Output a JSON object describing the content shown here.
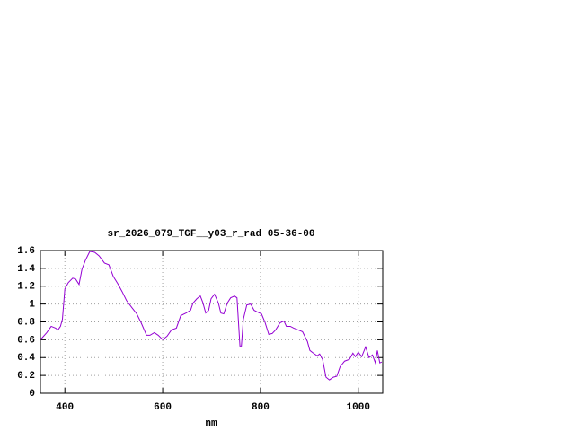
{
  "chart_data": {
    "type": "line",
    "title": "sr_2026_079_TGF__y03_r_rad 05-36-00",
    "x_label": "nm",
    "xlim": [
      350,
      1050
    ],
    "xticks": [
      400,
      600,
      800,
      1000
    ],
    "ylim": [
      0,
      1.6
    ],
    "yticks": [
      0,
      0.2,
      0.4,
      0.6,
      0.8,
      1,
      1.2,
      1.4,
      1.6
    ],
    "grid": true,
    "series": [
      {
        "color": "#9400d3",
        "x": [
          350,
          363,
          372,
          381,
          386,
          391,
          395,
          400,
          407,
          416,
          422,
          429,
          435,
          442,
          451,
          461,
          470,
          481,
          490,
          499,
          508,
          517,
          526,
          537,
          547,
          556,
          567,
          574,
          583,
          591,
          600,
          609,
          618,
          628,
          637,
          648,
          657,
          662,
          670,
          677,
          682,
          688,
          694,
          699,
          706,
          714,
          719,
          725,
          732,
          739,
          747,
          752,
          758,
          761,
          765,
          772,
          780,
          787,
          794,
          802,
          809,
          817,
          824,
          831,
          840,
          848,
          853,
          861,
          868,
          877,
          886,
          896,
          901,
          908,
          916,
          921,
          927,
          934,
          941,
          949,
          956,
          963,
          972,
          982,
          989,
          994,
          1000,
          1007,
          1015,
          1022,
          1029,
          1035,
          1039,
          1044,
          1048
        ],
        "values": [
          0.6,
          0.68,
          0.75,
          0.73,
          0.71,
          0.75,
          0.83,
          1.17,
          1.24,
          1.29,
          1.28,
          1.22,
          1.39,
          1.49,
          1.59,
          1.58,
          1.54,
          1.46,
          1.44,
          1.31,
          1.23,
          1.14,
          1.04,
          0.96,
          0.89,
          0.79,
          0.65,
          0.65,
          0.68,
          0.65,
          0.6,
          0.64,
          0.71,
          0.73,
          0.87,
          0.9,
          0.93,
          1.01,
          1.06,
          1.09,
          1.02,
          0.9,
          0.93,
          1.06,
          1.11,
          1.01,
          0.9,
          0.89,
          1.01,
          1.07,
          1.09,
          1.07,
          0.53,
          0.53,
          0.83,
          0.99,
          1.0,
          0.93,
          0.91,
          0.89,
          0.8,
          0.66,
          0.67,
          0.71,
          0.79,
          0.81,
          0.75,
          0.75,
          0.73,
          0.71,
          0.69,
          0.58,
          0.48,
          0.45,
          0.42,
          0.44,
          0.38,
          0.18,
          0.15,
          0.18,
          0.19,
          0.3,
          0.36,
          0.38,
          0.45,
          0.41,
          0.46,
          0.41,
          0.52,
          0.4,
          0.43,
          0.34,
          0.48,
          0.34,
          0.35
        ]
      }
    ]
  }
}
